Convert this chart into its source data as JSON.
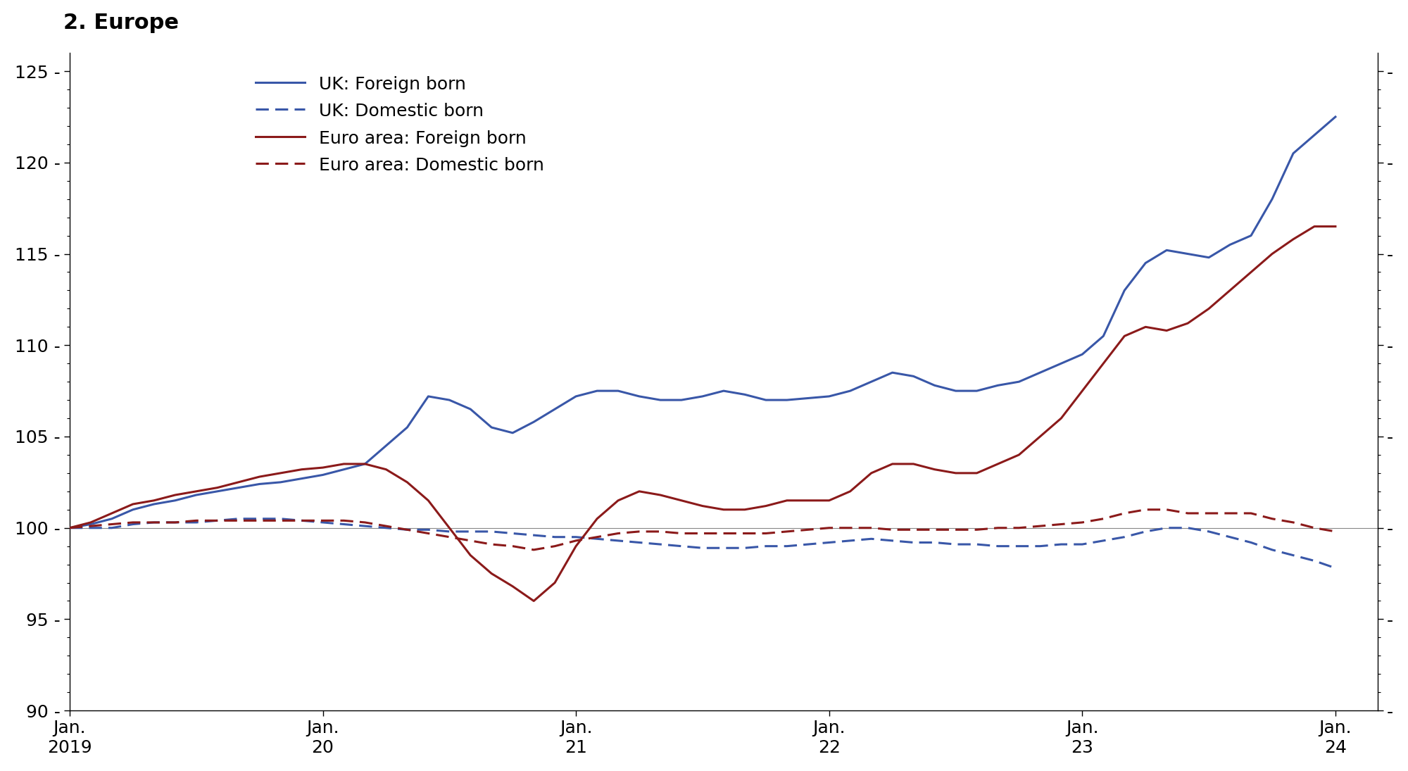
{
  "title": "2. Europe",
  "background_color": "#ffffff",
  "ylim": [
    90,
    126
  ],
  "yticks": [
    90,
    95,
    100,
    105,
    110,
    115,
    120,
    125
  ],
  "ytick_minor": [
    91,
    92,
    93,
    94,
    96,
    97,
    98,
    99,
    101,
    102,
    103,
    104,
    106,
    107,
    108,
    109,
    111,
    112,
    113,
    114,
    116,
    117,
    118,
    119,
    121,
    122,
    123,
    124
  ],
  "xlabel_ticks": [
    {
      "x": 0,
      "label": "Jan.\n2019"
    },
    {
      "x": 12,
      "label": "Jan.\n20"
    },
    {
      "x": 24,
      "label": "Jan.\n21"
    },
    {
      "x": 36,
      "label": "Jan.\n22"
    },
    {
      "x": 48,
      "label": "Jan.\n23"
    },
    {
      "x": 60,
      "label": "Jan.\n24"
    }
  ],
  "series": [
    {
      "key": "uk_foreign",
      "label": "UK: Foreign born",
      "color": "#3957a8",
      "linestyle": "solid",
      "linewidth": 2.2,
      "data_x": [
        0,
        1,
        2,
        3,
        4,
        5,
        6,
        7,
        8,
        9,
        10,
        11,
        12,
        13,
        14,
        15,
        16,
        17,
        18,
        19,
        20,
        21,
        22,
        23,
        24,
        25,
        26,
        27,
        28,
        29,
        30,
        31,
        32,
        33,
        34,
        35,
        36,
        37,
        38,
        39,
        40,
        41,
        42,
        43,
        44,
        45,
        46,
        47,
        48,
        49,
        50,
        51,
        52,
        53,
        54,
        55,
        56,
        57,
        58,
        59,
        60
      ],
      "data_y": [
        100.0,
        100.2,
        100.5,
        101.0,
        101.3,
        101.5,
        101.8,
        102.0,
        102.2,
        102.4,
        102.5,
        102.7,
        102.9,
        103.2,
        103.5,
        104.5,
        105.5,
        107.2,
        107.0,
        106.5,
        105.5,
        105.2,
        105.8,
        106.5,
        107.2,
        107.5,
        107.5,
        107.2,
        107.0,
        107.0,
        107.2,
        107.5,
        107.3,
        107.0,
        107.0,
        107.1,
        107.2,
        107.5,
        108.0,
        108.5,
        108.3,
        107.8,
        107.5,
        107.5,
        107.8,
        108.0,
        108.5,
        109.0,
        109.5,
        110.5,
        113.0,
        114.5,
        115.2,
        115.0,
        114.8,
        115.5,
        116.0,
        118.0,
        120.5,
        121.5,
        122.5
      ]
    },
    {
      "key": "uk_domestic",
      "label": "UK: Domestic born",
      "color": "#3957a8",
      "linestyle": "dashed",
      "linewidth": 2.2,
      "data_x": [
        0,
        1,
        2,
        3,
        4,
        5,
        6,
        7,
        8,
        9,
        10,
        11,
        12,
        13,
        14,
        15,
        16,
        17,
        18,
        19,
        20,
        21,
        22,
        23,
        24,
        25,
        26,
        27,
        28,
        29,
        30,
        31,
        32,
        33,
        34,
        35,
        36,
        37,
        38,
        39,
        40,
        41,
        42,
        43,
        44,
        45,
        46,
        47,
        48,
        49,
        50,
        51,
        52,
        53,
        54,
        55,
        56,
        57,
        58,
        59,
        60
      ],
      "data_y": [
        100.0,
        100.0,
        100.0,
        100.2,
        100.3,
        100.3,
        100.3,
        100.4,
        100.5,
        100.5,
        100.5,
        100.4,
        100.3,
        100.2,
        100.1,
        100.0,
        99.9,
        99.9,
        99.8,
        99.8,
        99.8,
        99.7,
        99.6,
        99.5,
        99.5,
        99.4,
        99.3,
        99.2,
        99.1,
        99.0,
        98.9,
        98.9,
        98.9,
        99.0,
        99.0,
        99.1,
        99.2,
        99.3,
        99.4,
        99.3,
        99.2,
        99.2,
        99.1,
        99.1,
        99.0,
        99.0,
        99.0,
        99.1,
        99.1,
        99.3,
        99.5,
        99.8,
        100.0,
        100.0,
        99.8,
        99.5,
        99.2,
        98.8,
        98.5,
        98.2,
        97.8
      ]
    },
    {
      "key": "euro_foreign",
      "label": "Euro area: Foreign born",
      "color": "#8b1a1a",
      "linestyle": "solid",
      "linewidth": 2.2,
      "data_x": [
        0,
        1,
        2,
        3,
        4,
        5,
        6,
        7,
        8,
        9,
        10,
        11,
        12,
        13,
        14,
        15,
        16,
        17,
        18,
        19,
        20,
        21,
        22,
        23,
        24,
        25,
        26,
        27,
        28,
        29,
        30,
        31,
        32,
        33,
        34,
        35,
        36,
        37,
        38,
        39,
        40,
        41,
        42,
        43,
        44,
        45,
        46,
        47,
        48,
        49,
        50,
        51,
        52,
        53,
        54,
        55,
        56,
        57,
        58,
        59,
        60
      ],
      "data_y": [
        100.0,
        100.3,
        100.8,
        101.3,
        101.5,
        101.8,
        102.0,
        102.2,
        102.5,
        102.8,
        103.0,
        103.2,
        103.3,
        103.5,
        103.5,
        103.2,
        102.5,
        101.5,
        100.0,
        98.5,
        97.5,
        96.8,
        96.0,
        97.0,
        99.0,
        100.5,
        101.5,
        102.0,
        101.8,
        101.5,
        101.2,
        101.0,
        101.0,
        101.2,
        101.5,
        101.5,
        101.5,
        102.0,
        103.0,
        103.5,
        103.5,
        103.2,
        103.0,
        103.0,
        103.5,
        104.0,
        105.0,
        106.0,
        107.5,
        109.0,
        110.5,
        111.0,
        110.8,
        111.2,
        112.0,
        113.0,
        114.0,
        115.0,
        115.8,
        116.5,
        116.5
      ]
    },
    {
      "key": "euro_domestic",
      "label": "Euro area: Domestic born",
      "color": "#8b1a1a",
      "linestyle": "dashed",
      "linewidth": 2.2,
      "data_x": [
        0,
        1,
        2,
        3,
        4,
        5,
        6,
        7,
        8,
        9,
        10,
        11,
        12,
        13,
        14,
        15,
        16,
        17,
        18,
        19,
        20,
        21,
        22,
        23,
        24,
        25,
        26,
        27,
        28,
        29,
        30,
        31,
        32,
        33,
        34,
        35,
        36,
        37,
        38,
        39,
        40,
        41,
        42,
        43,
        44,
        45,
        46,
        47,
        48,
        49,
        50,
        51,
        52,
        53,
        54,
        55,
        56,
        57,
        58,
        59,
        60
      ],
      "data_y": [
        100.0,
        100.1,
        100.2,
        100.3,
        100.3,
        100.3,
        100.4,
        100.4,
        100.4,
        100.4,
        100.4,
        100.4,
        100.4,
        100.4,
        100.3,
        100.1,
        99.9,
        99.7,
        99.5,
        99.3,
        99.1,
        99.0,
        98.8,
        99.0,
        99.3,
        99.5,
        99.7,
        99.8,
        99.8,
        99.7,
        99.7,
        99.7,
        99.7,
        99.7,
        99.8,
        99.9,
        100.0,
        100.0,
        100.0,
        99.9,
        99.9,
        99.9,
        99.9,
        99.9,
        100.0,
        100.0,
        100.1,
        100.2,
        100.3,
        100.5,
        100.8,
        101.0,
        101.0,
        100.8,
        100.8,
        100.8,
        100.8,
        100.5,
        100.3,
        100.0,
        99.8
      ]
    }
  ]
}
